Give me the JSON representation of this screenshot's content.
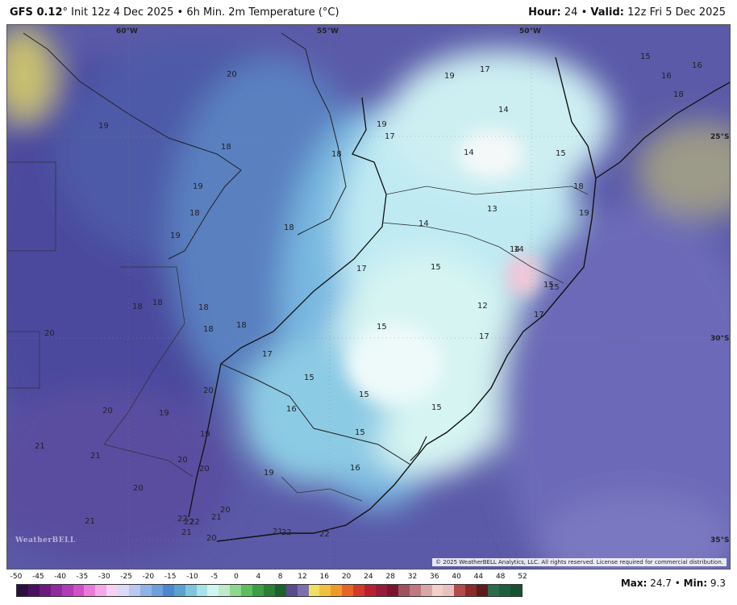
{
  "header": {
    "model": "GFS 0.12",
    "deg": "°",
    "init": "Init 12z 4 Dec 2025",
    "sep1": "•",
    "product": "6h Min. 2m Temperature (°C)",
    "hour_label": "Hour:",
    "hour_value": "24",
    "sep2": "•",
    "valid_label": "Valid:",
    "valid_value": "12z Fri 5 Dec 2025"
  },
  "map": {
    "lon_labels": [
      "60°W",
      "55°W",
      "50°W"
    ],
    "lat_labels": [
      "25°S",
      "30°S",
      "35°S"
    ],
    "copyright": "© 2025 WeatherBELL Analytics, LLC. All rights reserved. License required for commercial distribution.",
    "logo": "WeatherBELL",
    "values": [
      "20",
      "19",
      "19",
      "18",
      "18",
      "19",
      "17",
      "15",
      "16",
      "14",
      "16",
      "18",
      "19",
      "17",
      "14",
      "15",
      "14",
      "18",
      "18",
      "19",
      "14",
      "13",
      "17",
      "19",
      "15",
      "18",
      "18",
      "17",
      "15",
      "14",
      "18",
      "18",
      "15",
      "20",
      "18",
      "12",
      "18",
      "15",
      "17",
      "17",
      "15",
      "15",
      "20",
      "16",
      "15",
      "20",
      "19",
      "19",
      "15",
      "20",
      "20",
      "16",
      "21",
      "20",
      "20",
      "19",
      "21",
      "21",
      "22",
      "22",
      "22",
      "21",
      "21",
      "20",
      "22",
      "22",
      "21"
    ]
  },
  "legend": {
    "ticks": [
      "-50",
      "-45",
      "-40",
      "-35",
      "-30",
      "-25",
      "-20",
      "-15",
      "-10",
      "-5",
      "0",
      "4",
      "8",
      "12",
      "16",
      "20",
      "24",
      "28",
      "32",
      "36",
      "40",
      "44",
      "48",
      "52"
    ],
    "colors": [
      "#2a0f3f",
      "#4a1060",
      "#6d1a80",
      "#8f2aa0",
      "#b23ab8",
      "#d24fc8",
      "#e87bd8",
      "#f3a8e8",
      "#f8d0f0",
      "#d9d9f8",
      "#b8c8f0",
      "#8fb3e8",
      "#6ea0dc",
      "#4e88cc",
      "#5aa3d0",
      "#7fc5dc",
      "#a8e2e8",
      "#cff5f2",
      "#bfe9c8",
      "#8fd690",
      "#5cbf5c",
      "#3aa043",
      "#2a8036",
      "#1d622c",
      "#5b4a8c",
      "#7c6fb0",
      "#f0e060",
      "#f0c040",
      "#ef9a2a",
      "#e8652a",
      "#d43a2a",
      "#b82030",
      "#981a3a",
      "#7a1430",
      "#a05060",
      "#c07880",
      "#d8a8a8",
      "#f0d0c8",
      "#eac0c0",
      "#b44b4b",
      "#8a2a2a",
      "#5e1b1b",
      "#2d6b4d",
      "#1f5e3e",
      "#165230"
    ],
    "max_label": "Max:",
    "max_value": "24.7",
    "sep": "•",
    "min_label": "Min:",
    "min_value": "9.3"
  }
}
